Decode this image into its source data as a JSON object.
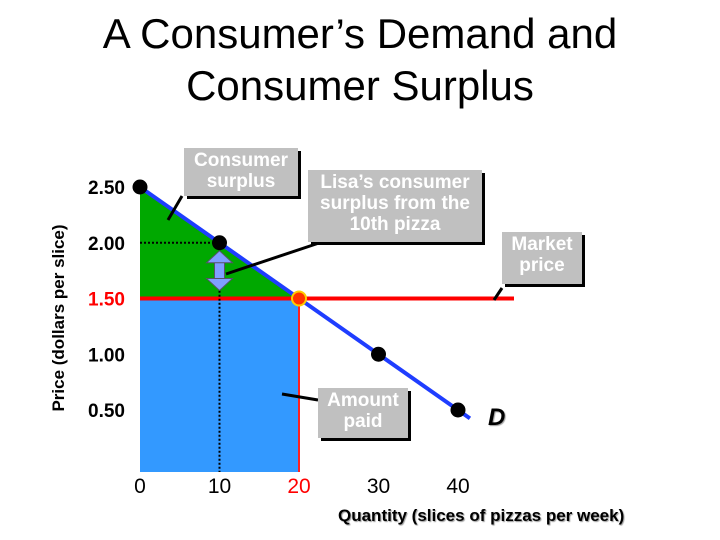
{
  "title_lines": [
    "A Consumer’s Demand and",
    "Consumer Surplus"
  ],
  "chart_data": {
    "type": "line",
    "title": "A Consumer’s Demand and Consumer Surplus",
    "xlabel": "Quantity (slices of pizzas per week)",
    "ylabel": "Price (dollars per slice)",
    "x_ticks": [
      "0",
      "10",
      "20",
      "30",
      "40"
    ],
    "y_ticks": [
      "0.50",
      "1.00",
      "1.50",
      "2.00",
      "2.50"
    ],
    "xlim": [
      0,
      40
    ],
    "ylim": [
      0.25,
      2.6
    ],
    "series": [
      {
        "name": "D",
        "x": [
          0,
          10,
          20,
          30,
          40
        ],
        "y": [
          2.5,
          2.0,
          1.5,
          1.0,
          0.5
        ]
      }
    ],
    "market_price": 1.5,
    "market_price_quantity": 20,
    "highlight_quantity": 10,
    "extra_y_gridline": 2.0,
    "annotations": {
      "consumer_surplus": [
        "Consumer",
        "surplus"
      ],
      "lisa_surplus": [
        "Lisa’s consumer",
        "surplus from the",
        "10th  pizza"
      ],
      "market_price": [
        "Market",
        "price"
      ],
      "amount_paid": [
        "Amount",
        "paid"
      ]
    },
    "colors": {
      "surplus": "#00a800",
      "paid": "#3399ff",
      "demand": "#1f3dff",
      "price_line": "#ff0000",
      "arrow": "#7f9fff",
      "callout_bg": "#c0c0c0"
    },
    "grid": false,
    "legend": "none"
  }
}
